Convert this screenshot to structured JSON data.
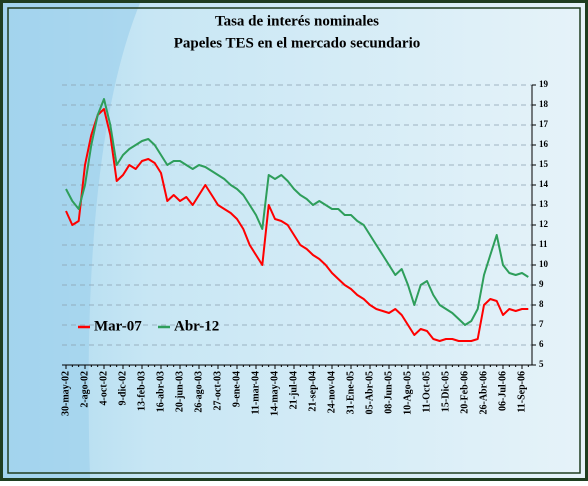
{
  "chart_data": {
    "type": "line",
    "title": "Tasa de interés nominales",
    "subtitle": "Papeles TES en el mercado secundario",
    "categories": [
      "30-may-02",
      null,
      null,
      "2-ago-02",
      null,
      null,
      "4-oct-02",
      null,
      null,
      "9-dic-02",
      null,
      null,
      "13-feb-03",
      null,
      null,
      "16-abr-03",
      null,
      null,
      "20-jun-03",
      null,
      null,
      "26-ago-03",
      null,
      null,
      "27-oct-03",
      null,
      null,
      "9-ene-04",
      null,
      null,
      "11-mar-04",
      null,
      null,
      "14-may-04",
      null,
      null,
      "21-jul-04",
      null,
      null,
      "21-sep-04",
      null,
      null,
      "24-nov-04",
      null,
      null,
      "31-Ene-05",
      null,
      null,
      "05-Abr-05",
      null,
      null,
      "08-Jun-05",
      null,
      null,
      "10-Ago-05",
      null,
      null,
      "11-Oct-05",
      null,
      null,
      "15-Dic-05",
      null,
      null,
      "20-Feb-06",
      null,
      null,
      "26-Abr-06",
      null,
      null,
      "06-Jul-06",
      null,
      null,
      "11-Sep-06",
      null
    ],
    "series": [
      {
        "name": "Mar-07",
        "color": "#ff0000",
        "values": [
          12.7,
          12.0,
          12.2,
          15.0,
          16.5,
          17.5,
          17.8,
          16.5,
          14.2,
          14.5,
          15.0,
          14.8,
          15.2,
          15.3,
          15.1,
          14.6,
          13.2,
          13.5,
          13.2,
          13.4,
          13.0,
          13.5,
          14.0,
          13.5,
          13.0,
          12.8,
          12.6,
          12.3,
          11.8,
          11.0,
          10.5,
          10.0,
          13.0,
          12.3,
          12.2,
          12.0,
          11.5,
          11.0,
          10.8,
          10.5,
          10.3,
          10.0,
          9.6,
          9.3,
          9.0,
          8.8,
          8.5,
          8.3,
          8.0,
          7.8,
          7.7,
          7.6,
          7.8,
          7.5,
          7.0,
          6.5,
          6.8,
          6.7,
          6.3,
          6.2,
          6.3,
          6.3,
          6.2,
          6.2,
          6.2,
          6.3,
          8.0,
          8.3,
          8.2,
          7.5,
          7.8,
          7.7,
          7.8,
          7.8
        ]
      },
      {
        "name": "Abr-12",
        "color": "#2e9e5b",
        "values": [
          13.8,
          13.2,
          12.8,
          14.0,
          16.0,
          17.5,
          18.3,
          17.0,
          15.0,
          15.5,
          15.8,
          16.0,
          16.2,
          16.3,
          16.0,
          15.5,
          15.0,
          15.2,
          15.2,
          15.0,
          14.8,
          15.0,
          14.9,
          14.7,
          14.5,
          14.3,
          14.0,
          13.8,
          13.5,
          13.0,
          12.5,
          11.8,
          14.5,
          14.3,
          14.5,
          14.2,
          13.8,
          13.5,
          13.3,
          13.0,
          13.2,
          13.0,
          12.8,
          12.8,
          12.5,
          12.5,
          12.2,
          12.0,
          11.5,
          11.0,
          10.5,
          10.0,
          9.5,
          9.8,
          9.0,
          8.0,
          9.0,
          9.2,
          8.5,
          8.0,
          7.8,
          7.6,
          7.3,
          7.0,
          7.2,
          7.8,
          9.5,
          10.5,
          11.5,
          10.0,
          9.6,
          9.5,
          9.6,
          9.4
        ]
      }
    ],
    "ylim": [
      5,
      19
    ],
    "yticks": [
      5,
      6,
      7,
      8,
      9,
      10,
      11,
      12,
      13,
      14,
      15,
      16,
      17,
      18,
      19
    ],
    "grid": true,
    "legend": "lower-left"
  }
}
